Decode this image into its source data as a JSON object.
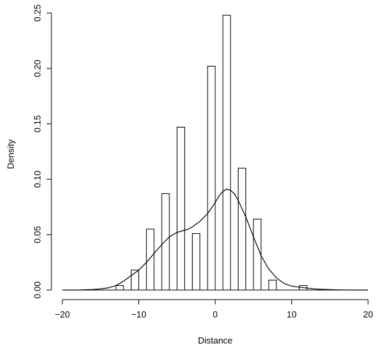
{
  "chart_data": {
    "type": "bar",
    "subtype": "histogram with density curve",
    "title": "",
    "xlabel": "Distance",
    "ylabel": "Density",
    "xlim": [
      -20,
      20
    ],
    "ylim": [
      0,
      0.25
    ],
    "x_ticks": [
      -20,
      -10,
      0,
      10,
      20
    ],
    "y_ticks": [
      0.0,
      0.05,
      0.1,
      0.15,
      0.2,
      0.25
    ],
    "x_tick_labels": [
      "−20",
      "−10",
      "0",
      "10",
      "20"
    ],
    "y_tick_labels": [
      "0.00",
      "0.05",
      "0.10",
      "0.15",
      "0.20",
      "0.25"
    ],
    "grid": false,
    "histogram": {
      "bin_width": 1,
      "bars": [
        {
          "x0": -13,
          "x1": -12,
          "value": 0.004
        },
        {
          "x0": -11,
          "x1": -10,
          "value": 0.018
        },
        {
          "x0": -9,
          "x1": -8,
          "value": 0.055
        },
        {
          "x0": -7,
          "x1": -6,
          "value": 0.087
        },
        {
          "x0": -5,
          "x1": -4,
          "value": 0.147
        },
        {
          "x0": -3,
          "x1": -2,
          "value": 0.051
        },
        {
          "x0": -1,
          "x1": 0,
          "value": 0.202
        },
        {
          "x0": 1,
          "x1": 2,
          "value": 0.248
        },
        {
          "x0": 3,
          "x1": 4,
          "value": 0.11
        },
        {
          "x0": 5,
          "x1": 6,
          "value": 0.064
        },
        {
          "x0": 7,
          "x1": 8,
          "value": 0.009
        },
        {
          "x0": 11,
          "x1": 12,
          "value": 0.004
        }
      ]
    },
    "density_curve": {
      "x": [
        -20,
        -18,
        -16,
        -15,
        -14,
        -13,
        -12,
        -11,
        -10,
        -9,
        -8,
        -7,
        -6,
        -5,
        -4,
        -3.5,
        -3,
        -2,
        -1,
        0,
        0.5,
        1,
        1.5,
        2,
        2.5,
        3,
        4,
        5,
        6,
        7,
        8,
        9,
        10,
        11,
        12,
        13,
        14,
        16,
        18,
        20
      ],
      "y": [
        0.0,
        0.0,
        0.0005,
        0.001,
        0.002,
        0.004,
        0.008,
        0.013,
        0.018,
        0.025,
        0.033,
        0.041,
        0.048,
        0.052,
        0.054,
        0.055,
        0.057,
        0.062,
        0.069,
        0.079,
        0.085,
        0.089,
        0.091,
        0.09,
        0.087,
        0.081,
        0.066,
        0.048,
        0.031,
        0.019,
        0.011,
        0.006,
        0.0035,
        0.0025,
        0.0018,
        0.001,
        0.0006,
        0.0002,
        0.0,
        0.0
      ]
    }
  }
}
